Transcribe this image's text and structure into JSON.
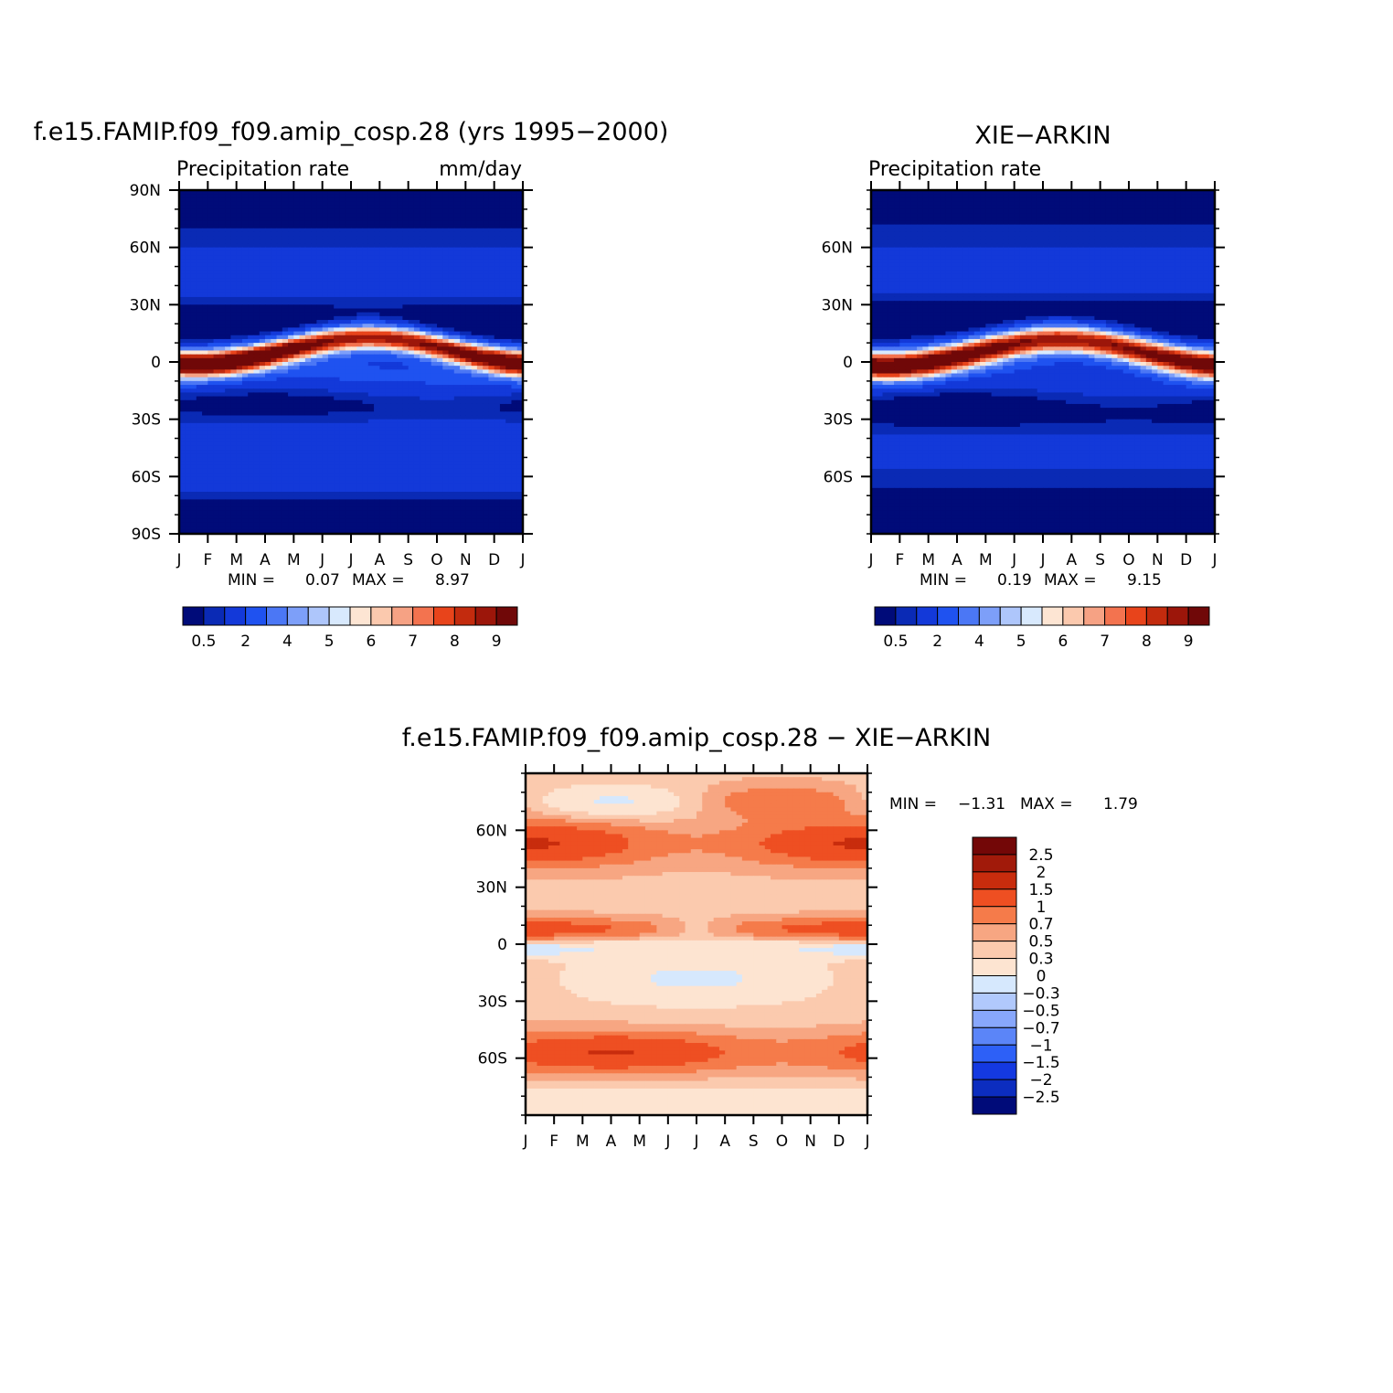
{
  "colors": {
    "abs_levels": [
      "#000b79",
      "#0a2ab5",
      "#1339d9",
      "#1f52f0",
      "#4b77f5",
      "#7d9ff9",
      "#aec6fb",
      "#d8e9fd",
      "#fde5d3",
      "#fbc9ae",
      "#f6a284",
      "#f3734f",
      "#e8441b",
      "#c32b0e",
      "#9c160a",
      "#700808"
    ],
    "diff_levels": [
      "#000b79",
      "#0c2dbf",
      "#1439e1",
      "#2d60f7",
      "#5b85f8",
      "#88a7fb",
      "#b1c9fc",
      "#d6e8fd",
      "#fde4d1",
      "#fbcaae",
      "#f7a682",
      "#f57b4a",
      "#ee4f22",
      "#c82c0d",
      "#a11a0a",
      "#730707"
    ]
  },
  "chart_data": [
    {
      "type": "heatmap",
      "panel_title": "f.e15.FAMIP.f09_f09.amip_cosp.28 (yrs 1995−2000)",
      "left_label": "Precipitation  rate",
      "right_label": "mm/day",
      "x_tick_labels": [
        "J",
        "F",
        "M",
        "A",
        "M",
        "J",
        "J",
        "A",
        "S",
        "O",
        "N",
        "D",
        "J"
      ],
      "y_tick_labels": [
        "90N",
        "60N",
        "30N",
        "0",
        "30S",
        "60S",
        "90S"
      ],
      "ylim": [
        -90,
        90
      ],
      "min_label": "MIN =",
      "min_value": "0.07",
      "max_label": "MAX =",
      "max_value": "8.97",
      "colorbar_labels": [
        "0.5",
        "2",
        "4",
        "5",
        "6",
        "7",
        "8",
        "9"
      ],
      "field": "model_precip"
    },
    {
      "type": "heatmap",
      "panel_title": "XIE−ARKIN",
      "left_label": "Precipitation  rate",
      "x_tick_labels": [
        "J",
        "F",
        "M",
        "A",
        "M",
        "J",
        "J",
        "A",
        "S",
        "O",
        "N",
        "D",
        "J"
      ],
      "y_tick_labels": [
        "60N",
        "30N",
        "0",
        "30S",
        "60S"
      ],
      "ylim": [
        -90,
        90
      ],
      "min_label": "MIN =",
      "min_value": "0.19",
      "max_label": "MAX =",
      "max_value": "9.15",
      "colorbar_labels": [
        "0.5",
        "2",
        "4",
        "5",
        "6",
        "7",
        "8",
        "9"
      ],
      "field": "obs_precip"
    },
    {
      "type": "heatmap",
      "panel_title": "f.e15.FAMIP.f09_f09.amip_cosp.28  −  XIE−ARKIN",
      "x_tick_labels": [
        "J",
        "F",
        "M",
        "A",
        "M",
        "J",
        "J",
        "A",
        "S",
        "O",
        "N",
        "D",
        "J"
      ],
      "y_tick_labels": [
        "60N",
        "30N",
        "0",
        "30S",
        "60S"
      ],
      "ylim": [
        -90,
        90
      ],
      "min_label": "MIN =",
      "min_value": "−1.31",
      "max_label": "MAX =",
      "max_value": "1.79",
      "colorbar_labels": [
        "2.5",
        "2",
        "1.5",
        "1",
        "0.7",
        "0.5",
        "0.3",
        "0",
        "−0.3",
        "−0.5",
        "−0.7",
        "−1",
        "−1.5",
        "−2",
        "−2.5"
      ],
      "field": "difference"
    }
  ]
}
